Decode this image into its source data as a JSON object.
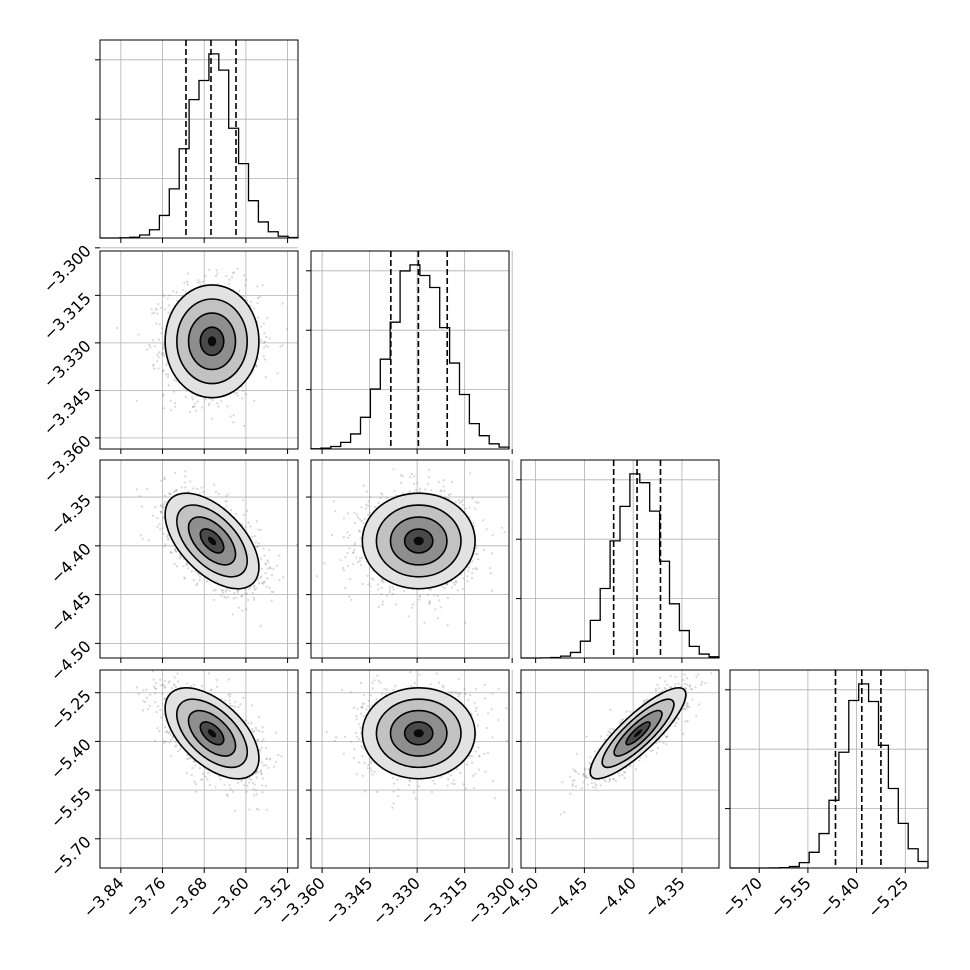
{
  "chart_data": {
    "type": "corner",
    "variables": [
      {
        "mean": -3.665,
        "sigma": 0.045,
        "quantiles": [
          -3.715,
          -3.667,
          -3.619
        ],
        "range": [
          -3.88,
          -3.5
        ],
        "ticks": [
          "-3.84",
          "-3.76",
          "-3.68",
          "-3.60",
          "-3.52"
        ],
        "tick_values": [
          -3.84,
          -3.76,
          -3.68,
          -3.6,
          -3.52
        ]
      },
      {
        "mean": -3.3295,
        "sigma": 0.0089,
        "quantiles": [
          -3.3383,
          -3.3296,
          -3.3205
        ],
        "range": [
          -3.3635,
          -3.301
        ],
        "ticks": [
          "-3.360",
          "-3.345",
          "-3.330",
          "-3.315",
          "-3.300"
        ],
        "tick_values": [
          -3.36,
          -3.345,
          -3.33,
          -3.315,
          -3.3
        ]
      },
      {
        "mean": -4.395,
        "sigma": 0.0245,
        "quantiles": [
          -4.42,
          -4.396,
          -4.372
        ],
        "range": [
          -4.515,
          -4.312
        ],
        "ticks": [
          "-4.35",
          "-4.40",
          "-4.45",
          "-4.50"
        ],
        "tick_values": [
          -4.35,
          -4.4,
          -4.45,
          -4.5
        ],
        "x_ticks": [
          "-4.50",
          "-4.45",
          "-4.40",
          "-4.35"
        ],
        "x_tick_values": [
          -4.5,
          -4.45,
          -4.4,
          -4.35
        ]
      },
      {
        "mean": -5.375,
        "sigma": 0.07,
        "quantiles": [
          -5.465,
          -5.384,
          -5.325
        ],
        "range": [
          -5.79,
          -5.18
        ],
        "ticks": [
          "-5.25",
          "-5.40",
          "-5.55",
          "-5.70"
        ],
        "tick_values": [
          -5.25,
          -5.4,
          -5.55,
          -5.7
        ],
        "x_ticks": [
          "-5.70",
          "-5.55",
          "-5.40",
          "-5.25"
        ],
        "x_tick_values": [
          -5.7,
          -5.55,
          -5.4,
          -5.25
        ]
      }
    ],
    "correlations": {
      "1-0": 0.0,
      "2-0": -0.55,
      "2-1": 0.0,
      "3-0": -0.55,
      "3-1": 0.0,
      "3-2": 0.85
    },
    "histogram_bins": 20,
    "grid": true,
    "xlabel": "",
    "ylabel": "",
    "title": ""
  }
}
